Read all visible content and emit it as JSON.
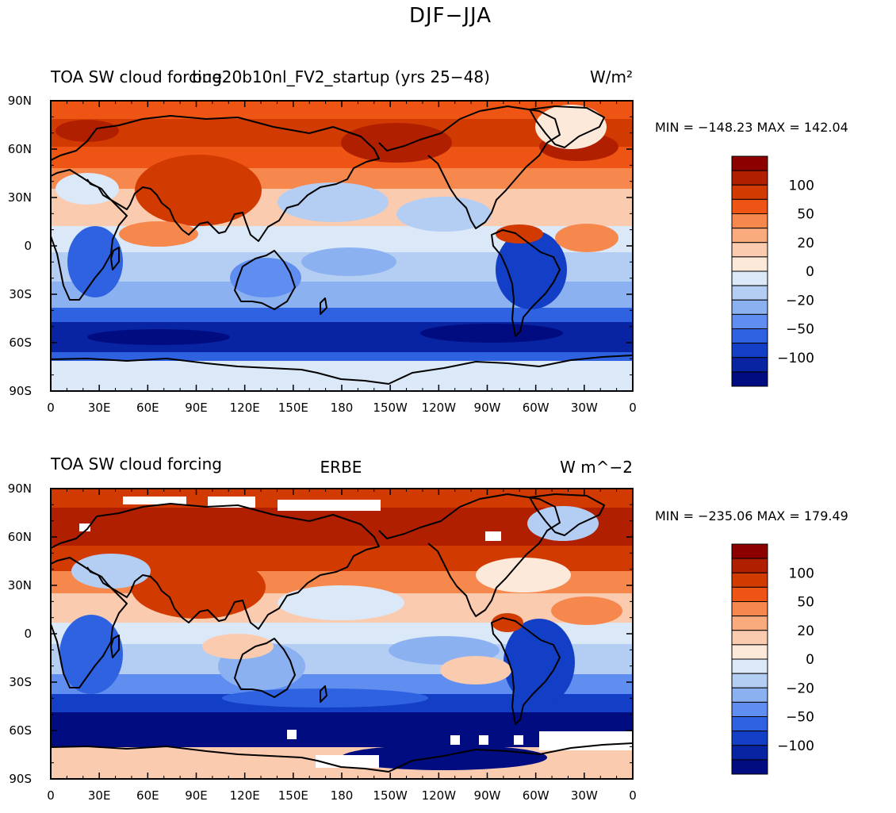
{
  "figure": {
    "title": "DJF−JJA"
  },
  "chart_data": [
    {
      "type": "heatmap",
      "title_left": "TOA SW cloud forcing",
      "title_center": "bue20b10nl_FV2_startup (yrs 25−48)",
      "title_right": "W/m²",
      "minmax": "MIN = −148.23  MAX = 142.04",
      "x_ticks": [
        "0",
        "30E",
        "60E",
        "90E",
        "120E",
        "150E",
        "180",
        "150W",
        "120W",
        "90W",
        "60W",
        "30W",
        "0"
      ],
      "y_ticks": [
        "90N",
        "60N",
        "30N",
        "0",
        "30S",
        "60S",
        "90S"
      ],
      "colorbar_labels": [
        "100",
        "50",
        "20",
        "0",
        "−20",
        "−50",
        "−100"
      ]
    },
    {
      "type": "heatmap",
      "title_left": "TOA SW cloud forcing",
      "title_center": "ERBE",
      "title_right": "W m^−2",
      "minmax": "MIN = −235.06  MAX = 179.49",
      "x_ticks": [
        "0",
        "30E",
        "60E",
        "90E",
        "120E",
        "150E",
        "180",
        "150W",
        "120W",
        "90W",
        "60W",
        "30W",
        "0"
      ],
      "y_ticks": [
        "90N",
        "60N",
        "30N",
        "0",
        "30S",
        "60S",
        "90S"
      ],
      "colorbar_labels": [
        "100",
        "50",
        "20",
        "0",
        "−20",
        "−50",
        "−100"
      ]
    }
  ],
  "colors": {
    "palette": [
      "#8c0000",
      "#b01f00",
      "#d13a00",
      "#ee5514",
      "#f6884d",
      "#f9ab7d",
      "#fbcbb0",
      "#fde9d9",
      "#dbe8f7",
      "#b4cef3",
      "#8bb1f1",
      "#5f8ef0",
      "#2f62e0",
      "#123fc6",
      "#0824a3",
      "#000c80"
    ]
  }
}
